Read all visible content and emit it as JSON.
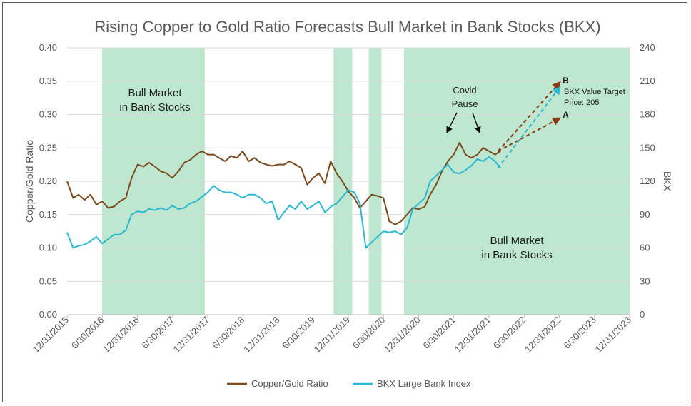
{
  "chart_data": {
    "type": "line",
    "title": "Rising Copper to Gold Ratio Forecasts Bull Market in Bank Stocks (BKX)",
    "xlabel": "",
    "ylabel": "Copper/Gold Ratio",
    "y2label": "BKX",
    "x_ticks": [
      "12/31/2015",
      "6/30/2016",
      "12/31/2016",
      "6/30/2017",
      "12/31/2017",
      "6/30/2018",
      "12/31/2018",
      "6/30/2019",
      "12/31/2019",
      "6/30/2020",
      "12/31/2020",
      "6/30/2021",
      "12/31/2021",
      "6/30/2022",
      "12/31/2022",
      "6/30/2023",
      "12/31/2023"
    ],
    "xlim": [
      "2015-12-31",
      "2023-12-31"
    ],
    "ylim": [
      0,
      0.4
    ],
    "y_ticks": [
      "0.00",
      "0.05",
      "0.10",
      "0.15",
      "0.20",
      "0.25",
      "0.30",
      "0.35",
      "0.40"
    ],
    "y2lim": [
      0,
      240
    ],
    "y2_ticks": [
      "0",
      "30",
      "60",
      "90",
      "120",
      "150",
      "180",
      "210",
      "240"
    ],
    "grid": "horizontal",
    "legend_position": "bottom",
    "colors": {
      "copper_gold": "#7B4A1E",
      "bkx": "#2DB8D1",
      "shade": "#BDE7CE",
      "arrow_brown": "#8B3A1A",
      "arrow_cyan": "#2DB8D1"
    },
    "shaded_periods": [
      {
        "start": "2016-06-30",
        "end": "2017-12-15"
      },
      {
        "start": "2019-10-15",
        "end": "2020-01-20"
      },
      {
        "start": "2020-04-15",
        "end": "2020-06-20"
      },
      {
        "start": "2020-10-15",
        "end": "2023-12-31"
      }
    ],
    "series": [
      {
        "name": "Copper/Gold Ratio",
        "axis": "left",
        "points": [
          [
            "2015-12-31",
            0.2
          ],
          [
            "2016-01-31",
            0.175
          ],
          [
            "2016-02-29",
            0.18
          ],
          [
            "2016-03-31",
            0.172
          ],
          [
            "2016-04-30",
            0.18
          ],
          [
            "2016-05-31",
            0.165
          ],
          [
            "2016-06-30",
            0.17
          ],
          [
            "2016-07-31",
            0.16
          ],
          [
            "2016-08-31",
            0.162
          ],
          [
            "2016-09-30",
            0.17
          ],
          [
            "2016-10-31",
            0.175
          ],
          [
            "2016-11-30",
            0.205
          ],
          [
            "2016-12-31",
            0.225
          ],
          [
            "2017-01-31",
            0.222
          ],
          [
            "2017-02-28",
            0.228
          ],
          [
            "2017-03-31",
            0.222
          ],
          [
            "2017-04-30",
            0.215
          ],
          [
            "2017-05-31",
            0.212
          ],
          [
            "2017-06-30",
            0.205
          ],
          [
            "2017-07-31",
            0.215
          ],
          [
            "2017-08-31",
            0.228
          ],
          [
            "2017-09-30",
            0.232
          ],
          [
            "2017-10-31",
            0.24
          ],
          [
            "2017-11-30",
            0.245
          ],
          [
            "2017-12-31",
            0.24
          ],
          [
            "2018-01-31",
            0.24
          ],
          [
            "2018-02-28",
            0.235
          ],
          [
            "2018-03-31",
            0.23
          ],
          [
            "2018-04-30",
            0.238
          ],
          [
            "2018-05-31",
            0.235
          ],
          [
            "2018-06-30",
            0.245
          ],
          [
            "2018-07-31",
            0.23
          ],
          [
            "2018-08-31",
            0.235
          ],
          [
            "2018-09-30",
            0.228
          ],
          [
            "2018-10-31",
            0.225
          ],
          [
            "2018-11-30",
            0.223
          ],
          [
            "2018-12-31",
            0.225
          ],
          [
            "2019-01-31",
            0.225
          ],
          [
            "2019-02-28",
            0.23
          ],
          [
            "2019-03-31",
            0.225
          ],
          [
            "2019-04-30",
            0.22
          ],
          [
            "2019-05-31",
            0.195
          ],
          [
            "2019-06-30",
            0.205
          ],
          [
            "2019-07-31",
            0.212
          ],
          [
            "2019-08-31",
            0.197
          ],
          [
            "2019-09-30",
            0.23
          ],
          [
            "2019-10-31",
            0.212
          ],
          [
            "2019-11-30",
            0.2
          ],
          [
            "2019-12-31",
            0.185
          ],
          [
            "2020-01-31",
            0.175
          ],
          [
            "2020-02-29",
            0.16
          ],
          [
            "2020-03-31",
            0.17
          ],
          [
            "2020-04-30",
            0.18
          ],
          [
            "2020-05-31",
            0.178
          ],
          [
            "2020-06-30",
            0.175
          ],
          [
            "2020-07-31",
            0.14
          ],
          [
            "2020-08-31",
            0.135
          ],
          [
            "2020-09-30",
            0.14
          ],
          [
            "2020-10-31",
            0.15
          ],
          [
            "2020-11-30",
            0.16
          ],
          [
            "2020-12-31",
            0.158
          ],
          [
            "2021-01-31",
            0.162
          ],
          [
            "2021-02-28",
            0.18
          ],
          [
            "2021-03-31",
            0.195
          ],
          [
            "2021-04-30",
            0.215
          ],
          [
            "2021-05-31",
            0.23
          ],
          [
            "2021-06-30",
            0.24
          ],
          [
            "2021-07-31",
            0.258
          ],
          [
            "2021-08-31",
            0.24
          ],
          [
            "2021-09-30",
            0.235
          ],
          [
            "2021-10-31",
            0.24
          ],
          [
            "2021-11-30",
            0.25
          ],
          [
            "2021-12-31",
            0.245
          ],
          [
            "2022-01-31",
            0.24
          ],
          [
            "2022-02-28",
            0.245
          ]
        ]
      },
      {
        "name": "BKX Large Bank Index",
        "axis": "right",
        "points": [
          [
            "2015-12-31",
            74
          ],
          [
            "2016-01-31",
            60
          ],
          [
            "2016-02-29",
            62
          ],
          [
            "2016-03-31",
            63
          ],
          [
            "2016-04-30",
            66
          ],
          [
            "2016-05-31",
            70
          ],
          [
            "2016-06-30",
            64
          ],
          [
            "2016-07-31",
            68
          ],
          [
            "2016-08-31",
            72
          ],
          [
            "2016-09-30",
            72
          ],
          [
            "2016-10-31",
            76
          ],
          [
            "2016-11-30",
            90
          ],
          [
            "2016-12-31",
            93
          ],
          [
            "2017-01-31",
            92
          ],
          [
            "2017-02-28",
            95
          ],
          [
            "2017-03-31",
            94
          ],
          [
            "2017-04-30",
            96
          ],
          [
            "2017-05-31",
            94
          ],
          [
            "2017-06-30",
            98
          ],
          [
            "2017-07-31",
            95
          ],
          [
            "2017-08-31",
            96
          ],
          [
            "2017-09-30",
            100
          ],
          [
            "2017-10-31",
            102
          ],
          [
            "2017-11-30",
            106
          ],
          [
            "2017-12-31",
            110
          ],
          [
            "2018-01-31",
            116
          ],
          [
            "2018-02-28",
            112
          ],
          [
            "2018-03-31",
            110
          ],
          [
            "2018-04-30",
            110
          ],
          [
            "2018-05-31",
            108
          ],
          [
            "2018-06-30",
            105
          ],
          [
            "2018-07-31",
            108
          ],
          [
            "2018-08-31",
            108
          ],
          [
            "2018-09-30",
            105
          ],
          [
            "2018-10-31",
            100
          ],
          [
            "2018-11-30",
            102
          ],
          [
            "2018-12-31",
            85
          ],
          [
            "2019-01-31",
            92
          ],
          [
            "2019-02-28",
            98
          ],
          [
            "2019-03-31",
            95
          ],
          [
            "2019-04-30",
            102
          ],
          [
            "2019-05-31",
            95
          ],
          [
            "2019-06-30",
            98
          ],
          [
            "2019-07-31",
            102
          ],
          [
            "2019-08-31",
            92
          ],
          [
            "2019-09-30",
            97
          ],
          [
            "2019-10-31",
            100
          ],
          [
            "2019-11-30",
            106
          ],
          [
            "2019-12-31",
            112
          ],
          [
            "2020-01-31",
            110
          ],
          [
            "2020-02-29",
            100
          ],
          [
            "2020-03-31",
            60
          ],
          [
            "2020-04-30",
            65
          ],
          [
            "2020-05-31",
            70
          ],
          [
            "2020-06-30",
            75
          ],
          [
            "2020-07-31",
            74
          ],
          [
            "2020-08-31",
            75
          ],
          [
            "2020-09-30",
            72
          ],
          [
            "2020-10-31",
            78
          ],
          [
            "2020-11-30",
            95
          ],
          [
            "2020-12-31",
            100
          ],
          [
            "2021-01-31",
            105
          ],
          [
            "2021-02-28",
            120
          ],
          [
            "2021-03-31",
            125
          ],
          [
            "2021-04-30",
            130
          ],
          [
            "2021-05-31",
            135
          ],
          [
            "2021-06-30",
            128
          ],
          [
            "2021-07-31",
            127
          ],
          [
            "2021-08-31",
            130
          ],
          [
            "2021-09-30",
            134
          ],
          [
            "2021-10-31",
            140
          ],
          [
            "2021-11-30",
            138
          ],
          [
            "2021-12-31",
            142
          ],
          [
            "2022-01-31",
            138
          ],
          [
            "2022-02-28",
            132
          ]
        ]
      }
    ],
    "projections": [
      {
        "label": "A",
        "axis": "left",
        "from": [
          "2022-02-15",
          0.245
        ],
        "to": [
          "2023-01-05",
          0.295
        ],
        "color": "#8B3A1A"
      },
      {
        "label": "B",
        "axis": "left",
        "from": [
          "2022-02-15",
          0.245
        ],
        "to": [
          "2023-01-05",
          0.349
        ],
        "color": "#8B3A1A"
      },
      {
        "label": "",
        "axis": "right",
        "from": [
          "2022-02-15",
          132
        ],
        "to": [
          "2023-01-05",
          205
        ],
        "color": "#2DB8D1"
      }
    ],
    "annotations": {
      "bull_left": [
        "Bull Market",
        "in Bank Stocks"
      ],
      "bull_right": [
        "Bull Market",
        "in Bank Stocks"
      ],
      "covid": [
        "Covid",
        "Pause"
      ],
      "label_a": "A",
      "label_b": "B",
      "target": [
        "BKX Value Target",
        "Price: 205"
      ]
    },
    "legend": [
      "Copper/Gold Ratio",
      "BKX Large Bank Index"
    ]
  }
}
